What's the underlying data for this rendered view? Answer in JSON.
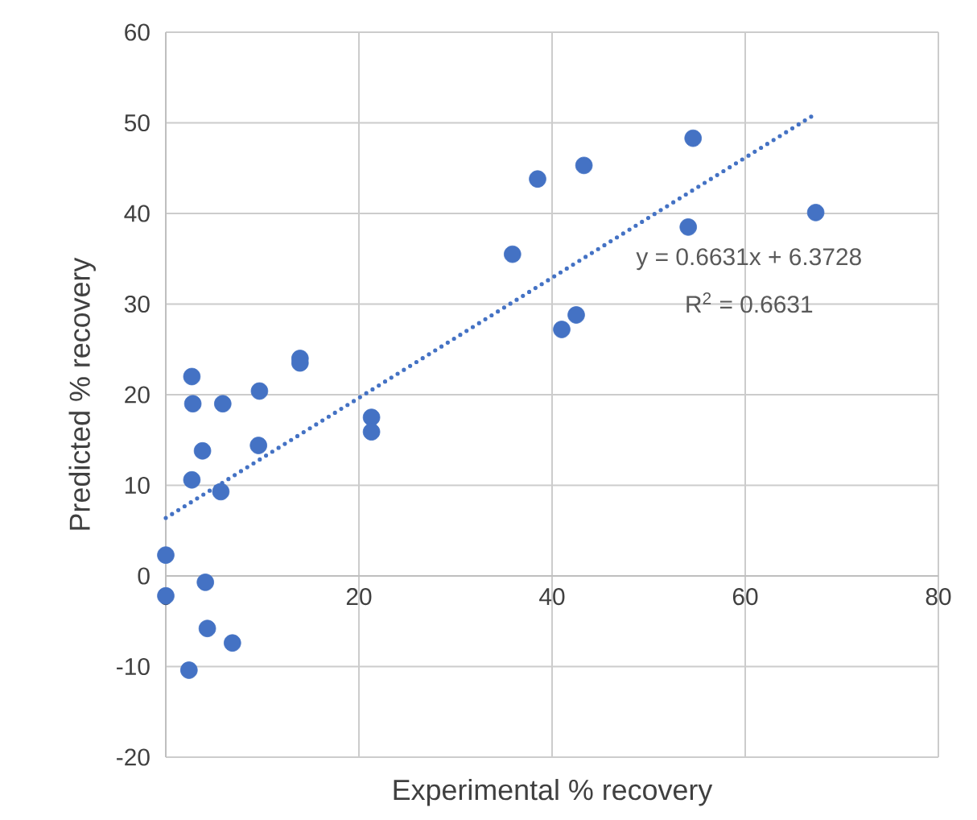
{
  "chart_data": {
    "type": "scatter",
    "xlabel": "Experimental % recovery",
    "ylabel": "Predicted % recovery",
    "xlim": [
      0,
      80
    ],
    "xticks": [
      0,
      20,
      40,
      60,
      80
    ],
    "ylim": [
      -20,
      60
    ],
    "yticks": [
      -20,
      -10,
      0,
      10,
      20,
      30,
      40,
      50,
      60
    ],
    "grid": true,
    "annotations": [
      "y = 0.6631x + 6.3728",
      "R$^{2}$ = 0.6631"
    ],
    "series": [
      {
        "color": "#4472c4",
        "marker": "circle",
        "x": [
          2.7,
          2.8,
          5.9,
          9.7,
          13.9,
          13.9,
          3.8,
          9.6,
          2.7,
          5.7,
          21.3,
          21.3,
          0,
          4.1,
          0,
          4.3,
          6.9,
          2.4,
          38.5,
          43.3,
          54.6,
          67.3,
          54.1,
          35.9,
          42.5,
          41.0
        ],
        "values": [
          22.0,
          19.0,
          19.0,
          20.4,
          24.0,
          23.5,
          13.8,
          14.4,
          10.6,
          9.3,
          17.5,
          15.9,
          2.3,
          -0.7,
          -2.2,
          -5.8,
          -7.4,
          -10.4,
          43.8,
          45.3,
          48.3,
          40.1,
          38.5,
          35.5,
          28.8,
          27.2
        ]
      },
      {
        "type": "line",
        "color": "#4472c4",
        "marker": "none",
        "line_style": "dotted",
        "x": [
          0,
          67.3
        ],
        "values": [
          6.4,
          51.0
        ]
      }
    ]
  }
}
